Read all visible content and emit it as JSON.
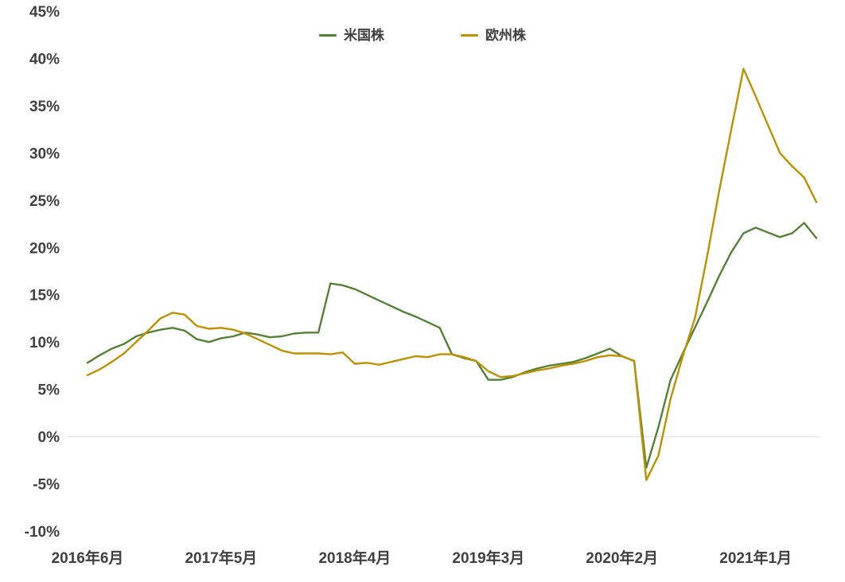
{
  "chart_data": {
    "type": "line",
    "title": "",
    "legend_position": "top-center",
    "grid": "zero-line-only",
    "x_unit": "month",
    "ylim": [
      -10,
      45
    ],
    "y_ticks": [
      {
        "value": 45,
        "label": "45%"
      },
      {
        "value": 40,
        "label": "40%"
      },
      {
        "value": 35,
        "label": "35%"
      },
      {
        "value": 30,
        "label": "30%"
      },
      {
        "value": 25,
        "label": "25%"
      },
      {
        "value": 20,
        "label": "20%"
      },
      {
        "value": 15,
        "label": "15%"
      },
      {
        "value": 10,
        "label": "10%"
      },
      {
        "value": 5,
        "label": "5%"
      },
      {
        "value": 0,
        "label": "0%"
      },
      {
        "value": -5,
        "label": "-5%"
      },
      {
        "value": -10,
        "label": "-10%"
      }
    ],
    "x_ticks": [
      {
        "index": 0,
        "label": "2016年6月"
      },
      {
        "index": 11,
        "label": "2017年5月"
      },
      {
        "index": 22,
        "label": "2018年4月"
      },
      {
        "index": 33,
        "label": "2019年3月"
      },
      {
        "index": 44,
        "label": "2020年2月"
      },
      {
        "index": 55,
        "label": "2021年1月"
      }
    ],
    "categories": [
      "2016年6月",
      "2016年7月",
      "2016年8月",
      "2016年9月",
      "2016年10月",
      "2016年11月",
      "2016年12月",
      "2017年1月",
      "2017年2月",
      "2017年3月",
      "2017年4月",
      "2017年5月",
      "2017年6月",
      "2017年7月",
      "2017年8月",
      "2017年9月",
      "2017年10月",
      "2017年11月",
      "2017年12月",
      "2018年1月",
      "2018年2月",
      "2018年3月",
      "2018年4月",
      "2018年5月",
      "2018年6月",
      "2018年7月",
      "2018年8月",
      "2018年9月",
      "2018年10月",
      "2018年11月",
      "2018年12月",
      "2019年1月",
      "2019年2月",
      "2019年3月",
      "2019年4月",
      "2019年5月",
      "2019年6月",
      "2019年7月",
      "2019年8月",
      "2019年9月",
      "2019年10月",
      "2019年11月",
      "2019年12月",
      "2020年1月",
      "2020年2月",
      "2020年3月",
      "2020年4月",
      "2020年5月",
      "2020年6月",
      "2020年7月",
      "2020年8月",
      "2020年9月",
      "2020年10月",
      "2020年11月",
      "2020年12月",
      "2021年1月",
      "2021年2月",
      "2021年3月",
      "2021年4月",
      "2021年5月",
      "2021年6月"
    ],
    "series": [
      {
        "id": "us-stocks",
        "name": "米国株",
        "color": "#548235",
        "values": [
          7.8,
          8.6,
          9.3,
          9.8,
          10.6,
          11.0,
          11.3,
          11.5,
          11.2,
          10.3,
          10.0,
          10.4,
          10.6,
          11.0,
          10.8,
          10.5,
          10.6,
          10.9,
          11.0,
          11.0,
          16.2,
          16.0,
          15.6,
          15.0,
          14.4,
          13.8,
          13.2,
          12.7,
          12.1,
          11.5,
          8.7,
          8.3,
          8.0,
          6.0,
          6.0,
          6.3,
          6.8,
          7.2,
          7.5,
          7.7,
          7.9,
          8.3,
          8.8,
          9.3,
          8.5,
          8.0,
          -3.3,
          1.0,
          6.0,
          8.8,
          11.5,
          14.2,
          17.0,
          19.5,
          21.5,
          22.1,
          21.6,
          21.1,
          21.5,
          22.6,
          21.0
        ]
      },
      {
        "id": "europe-stocks",
        "name": "欧州株",
        "color": "#BF9000",
        "values": [
          6.5,
          7.1,
          7.9,
          8.8,
          10.0,
          11.2,
          12.5,
          13.1,
          12.9,
          11.7,
          11.4,
          11.5,
          11.3,
          10.9,
          10.3,
          9.7,
          9.1,
          8.8,
          8.8,
          8.8,
          8.7,
          8.9,
          7.7,
          7.8,
          7.6,
          7.9,
          8.2,
          8.5,
          8.4,
          8.7,
          8.7,
          8.4,
          8.0,
          6.9,
          6.3,
          6.4,
          6.7,
          7.0,
          7.2,
          7.5,
          7.7,
          8.0,
          8.4,
          8.6,
          8.5,
          8.0,
          -4.6,
          -2.0,
          4.0,
          8.5,
          12.5,
          19.0,
          26.0,
          32.5,
          38.9,
          36.0,
          33.0,
          30.0,
          28.6,
          27.4,
          24.8
        ]
      }
    ],
    "colors": {
      "zero_line": "#D9D9D9",
      "axis_text": "#404040",
      "background": "#FFFFFF"
    }
  }
}
